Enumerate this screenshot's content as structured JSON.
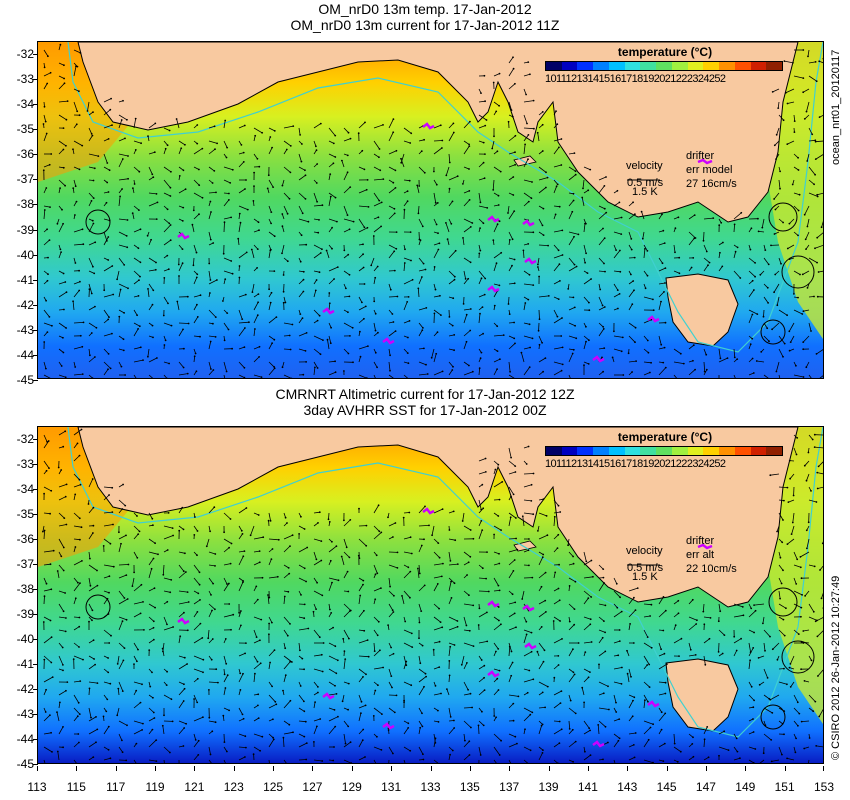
{
  "top_panel": {
    "title_line1": "OM_nrD0 13m temp. 17-Jan-2012",
    "title_line2": "OM_nrD0 13m current for 17-Jan-2012 11Z",
    "legend_title": "temperature (°C)",
    "legend_values": "101112131415161718192021222324252",
    "velocity_label": "velocity",
    "velocity_scale": "0.5 m/s",
    "velocity_knots": "1.5 K",
    "drifter_label": "drifter",
    "err_label": "err model",
    "err_values": "27 16cm/s",
    "side_label": "ocean_nrt01_20120117"
  },
  "bottom_panel": {
    "title_line1": "CMRNRT Altimetric current for 17-Jan-2012 12Z",
    "title_line2": "3day AVHRR SST for 17-Jan-2012 00Z",
    "legend_title": "temperature (°C)",
    "legend_values": "101112131415161718192021222324252",
    "velocity_label": "velocity",
    "velocity_scale": "0.5 m/s",
    "velocity_knots": "1.5 K",
    "drifter_label": "drifter",
    "err_label": "err alt",
    "err_values": "22 10cm/s",
    "side_label": "© CSIRO 2012  26-Jan-2012 10:27:49"
  },
  "latitude_labels": [
    "-32",
    "-33",
    "-34",
    "-35",
    "-36",
    "-37",
    "-38",
    "-39",
    "-40",
    "-41",
    "-42",
    "-43",
    "-44",
    "-45"
  ],
  "longitude_labels": [
    "113",
    "115",
    "117",
    "119",
    "121",
    "123",
    "125",
    "127",
    "129",
    "131",
    "133",
    "135",
    "137",
    "139",
    "141",
    "143",
    "145",
    "147",
    "149",
    "151",
    "153"
  ],
  "colors": {
    "land": "#f8c9a0",
    "drifter": "#cc00ff",
    "isobath": "#40d0d0",
    "palette": [
      "#000066",
      "#0000c0",
      "#0030ff",
      "#0080ff",
      "#00c0ff",
      "#30e0e0",
      "#40e0a0",
      "#60e060",
      "#a0f040",
      "#e0f020",
      "#ffd000",
      "#ff9000",
      "#ff5000",
      "#d02000",
      "#902000"
    ]
  }
}
